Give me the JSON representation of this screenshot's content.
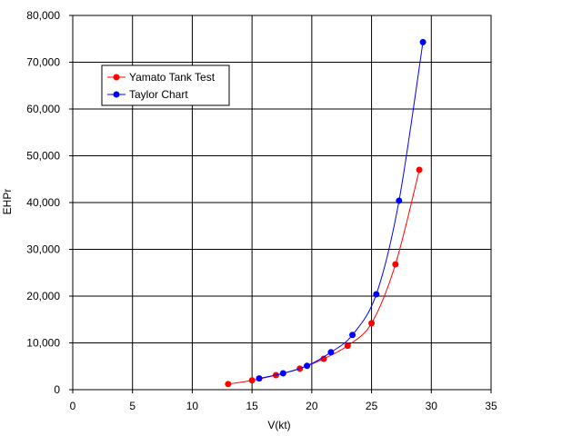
{
  "chart_data": {
    "type": "line",
    "title": "",
    "xlabel": "V(kt)",
    "ylabel": "EHPr",
    "xlim": [
      0,
      35
    ],
    "ylim": [
      0,
      80000
    ],
    "x_ticks": [
      0,
      5,
      10,
      15,
      20,
      25,
      30,
      35
    ],
    "x_tick_labels": [
      "0",
      "5",
      "10",
      "15",
      "20",
      "25",
      "30",
      "35"
    ],
    "y_ticks": [
      0,
      10000,
      20000,
      30000,
      40000,
      50000,
      60000,
      70000,
      80000
    ],
    "y_tick_labels": [
      "0",
      "10,000",
      "20,000",
      "30,000",
      "40,000",
      "50,000",
      "60,000",
      "70,000",
      "80,000"
    ],
    "grid": true,
    "legend_position": "upper-left",
    "series": [
      {
        "name": "Yamato Tank Test",
        "color": "#ff0000",
        "x": [
          13,
          15,
          17,
          19,
          21,
          23,
          25,
          27,
          29
        ],
        "y": [
          1200,
          2000,
          3100,
          4500,
          6600,
          9400,
          14200,
          26800,
          47000
        ]
      },
      {
        "name": "Taylor Chart",
        "color": "#0000ff",
        "x": [
          15.6,
          17.6,
          19.6,
          21.6,
          23.4,
          25.4,
          27.3,
          29.3
        ],
        "y": [
          2400,
          3500,
          5100,
          8000,
          11700,
          20400,
          40400,
          74300
        ]
      }
    ]
  }
}
